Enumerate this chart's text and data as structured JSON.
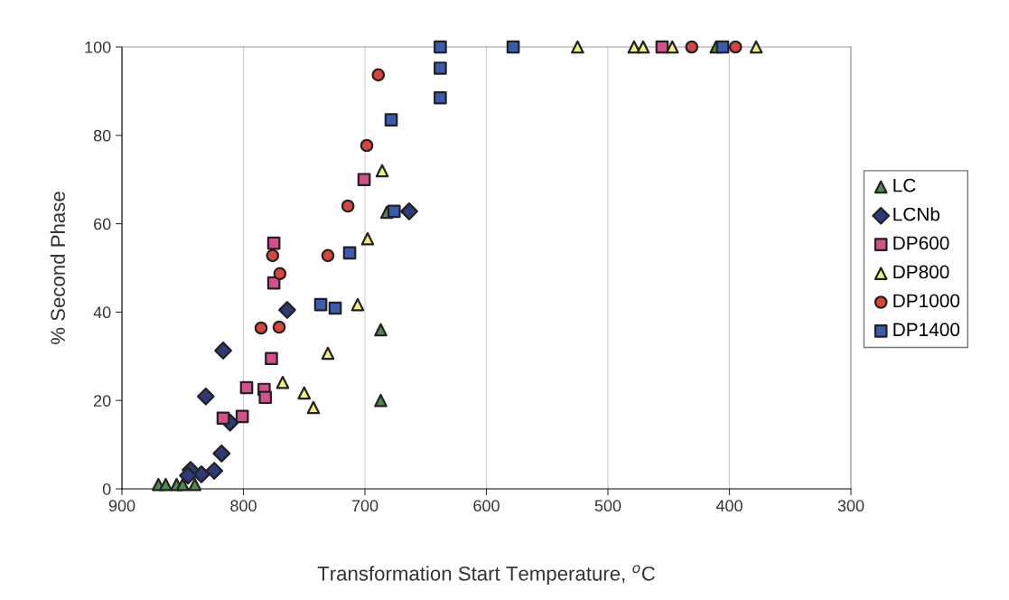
{
  "chart_data": {
    "type": "scatter",
    "xlabel": "Transformation Start Temperature, $^{o}$C",
    "ylabel": "% Second Phase",
    "xlim": [
      900,
      300
    ],
    "xticks": [
      900,
      800,
      700,
      600,
      500,
      400,
      300
    ],
    "ylim": [
      0,
      100
    ],
    "yticks": [
      0,
      20,
      40,
      60,
      80,
      100
    ],
    "grid": "x",
    "legend": "right",
    "series": [
      {
        "name": "LC",
        "marker": "triangle",
        "color": "#4e8c4e",
        "x": [
          870,
          864,
          855,
          850,
          840,
          687,
          687,
          682,
          411
        ],
        "values": [
          1,
          1,
          1,
          1,
          1,
          20,
          36,
          62.6,
          100
        ]
      },
      {
        "name": "LCNb",
        "marker": "diamond",
        "color": "#2e3a78",
        "x": [
          764,
          816.7,
          831,
          811,
          818,
          824,
          834.6,
          843.5,
          845.7,
          663.6
        ],
        "values": [
          40.5,
          31.3,
          20.9,
          15,
          8,
          4.1,
          3.3,
          4.3,
          3,
          62.8
        ]
      },
      {
        "name": "DP600",
        "marker": "square",
        "color": "#d4508a",
        "x": [
          777,
          797.4,
          783,
          782,
          816.7,
          801,
          700.7,
          775,
          775,
          455.4
        ],
        "values": [
          29.5,
          22.9,
          22.5,
          20.7,
          16,
          16.4,
          70,
          55.6,
          46.6,
          100
        ]
      },
      {
        "name": "DP800",
        "marker": "triangle",
        "color": "#f0f07a",
        "x": [
          706,
          730.5,
          767.7,
          750,
          742.4,
          685.8,
          697.8,
          525,
          478.5,
          471,
          447,
          378
        ],
        "values": [
          41.7,
          30.7,
          24.1,
          21.7,
          18.4,
          72,
          56.6,
          100,
          100,
          100,
          100,
          100
        ]
      },
      {
        "name": "DP1000",
        "marker": "circle",
        "color": "#d8453a",
        "x": [
          785.5,
          770.6,
          776,
          770,
          698.5,
          714,
          689,
          730.5,
          431,
          395
        ],
        "values": [
          36.4,
          36.6,
          52.8,
          48.7,
          77.7,
          64,
          93.7,
          52.8,
          100,
          100
        ]
      },
      {
        "name": "DP1400",
        "marker": "square",
        "color": "#3a5bb0",
        "x": [
          736.4,
          724.5,
          676,
          712.6,
          678.4,
          638,
          638,
          638,
          578,
          405.6
        ],
        "values": [
          41.7,
          40.9,
          62.8,
          53.4,
          83.5,
          100,
          95.2,
          88.5,
          100,
          100
        ]
      }
    ]
  }
}
